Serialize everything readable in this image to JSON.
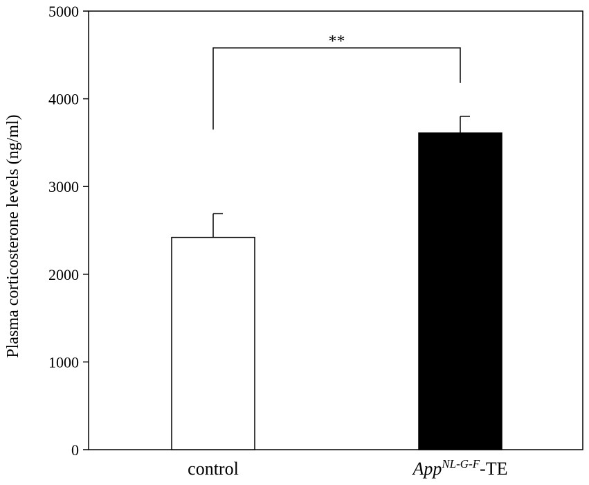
{
  "chart_data": {
    "type": "bar",
    "title": "",
    "xlabel": "",
    "ylabel": "Plasma corticosterone levels  (ng/ml)",
    "ylim": [
      0,
      5000
    ],
    "yticks": [
      0,
      1000,
      2000,
      3000,
      4000,
      5000
    ],
    "categories": [
      "control",
      "App-NL-G-F-TE"
    ],
    "category_labels": [
      {
        "main": "control",
        "sup": "",
        "suffix": ""
      },
      {
        "main": "App",
        "sup": "NL-G-F",
        "suffix": "-TE"
      }
    ],
    "values": [
      2420,
      3610
    ],
    "errors": [
      270,
      190
    ],
    "bar_colors": [
      "#ffffff",
      "#000000"
    ],
    "bar_edge_color": "#000000",
    "grid": false,
    "legend": "none",
    "significance": {
      "from": 0,
      "to": 1,
      "label": "**",
      "left_y": 3650,
      "right_y": 4180,
      "top_y": 4580
    }
  }
}
